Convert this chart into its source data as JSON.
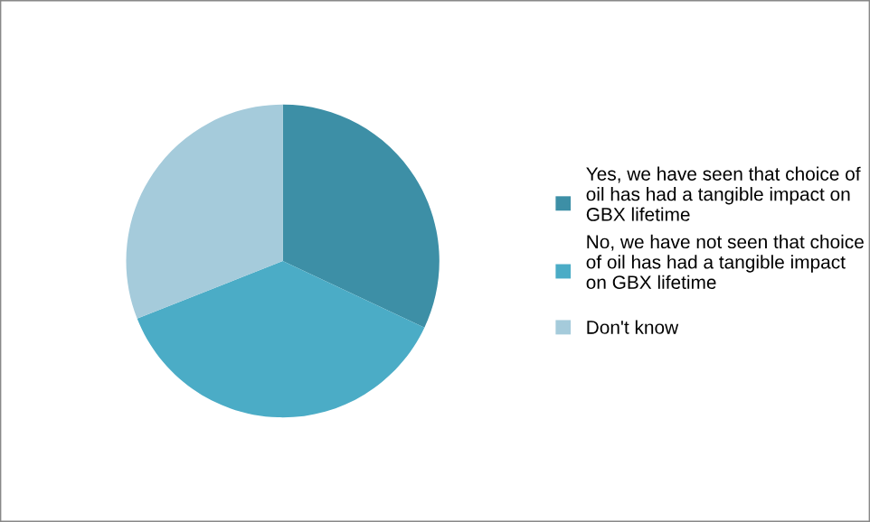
{
  "chart_data": {
    "type": "pie",
    "categories": [
      "Yes, we have seen that choice of oil has had a tangible impact on GBX lifetime",
      "No, we have not seen that choice of oil has had a tangible impact on GBX lifetime",
      "Don't know"
    ],
    "values": [
      32,
      37,
      31
    ],
    "colors": [
      "#3d8fa6",
      "#4bacc6",
      "#a5cbdb"
    ],
    "legend": "right"
  }
}
